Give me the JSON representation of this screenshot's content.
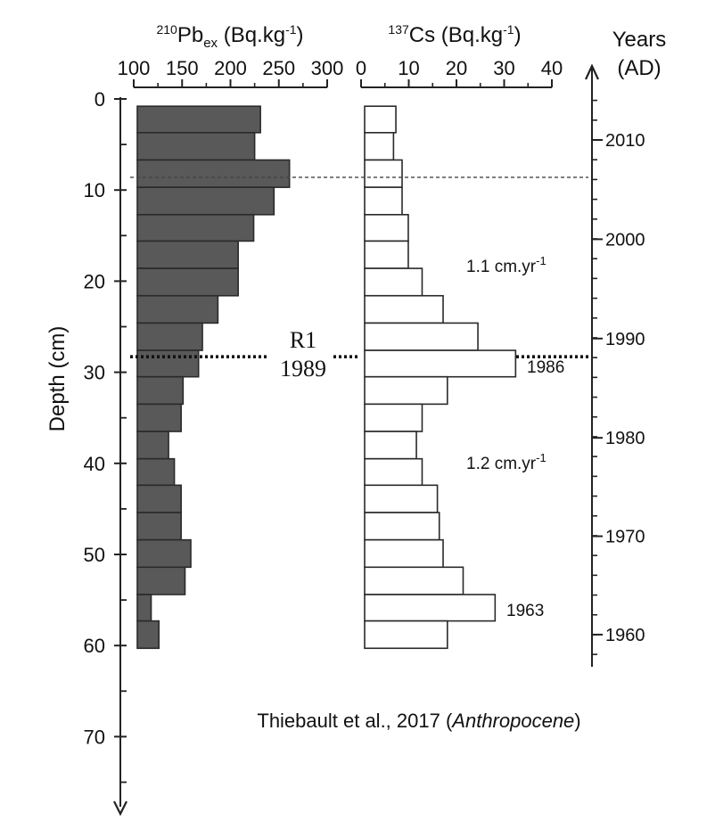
{
  "chart_data": {
    "type": "bar",
    "orientation": "horizontal",
    "shared_axis": {
      "label": "Depth (cm)",
      "ticks": [
        "0",
        "10",
        "20",
        "30",
        "40",
        "50",
        "60",
        "70"
      ],
      "range": [
        0,
        78
      ],
      "direction": "down"
    },
    "panels": [
      {
        "id": "pb",
        "title_sup": "210",
        "title_main": "Pb",
        "title_sub": "ex",
        "title_unit": " (Bq.kg",
        "title_unit_sup": "-1",
        "title_unit_end": ")",
        "xlim": [
          100,
          300
        ],
        "ticks": [
          "100",
          "150",
          "200",
          "250",
          "300"
        ],
        "tick_values": [
          100,
          150,
          200,
          250,
          300
        ],
        "fill": "#595959",
        "bars": [
          {
            "top": 0.8,
            "bottom": 3.7,
            "value": 231
          },
          {
            "top": 3.7,
            "bottom": 6.7,
            "value": 225
          },
          {
            "top": 6.7,
            "bottom": 9.7,
            "value": 261
          },
          {
            "top": 9.7,
            "bottom": 12.7,
            "value": 245
          },
          {
            "top": 12.7,
            "bottom": 15.6,
            "value": 224
          },
          {
            "top": 15.6,
            "bottom": 18.6,
            "value": 208
          },
          {
            "top": 18.6,
            "bottom": 21.6,
            "value": 208
          },
          {
            "top": 21.6,
            "bottom": 24.6,
            "value": 187
          },
          {
            "top": 24.6,
            "bottom": 27.6,
            "value": 171
          },
          {
            "top": 27.6,
            "bottom": 30.5,
            "value": 167
          },
          {
            "top": 30.5,
            "bottom": 33.5,
            "value": 151
          },
          {
            "top": 33.5,
            "bottom": 36.5,
            "value": 149
          },
          {
            "top": 36.5,
            "bottom": 39.5,
            "value": 136
          },
          {
            "top": 39.5,
            "bottom": 42.4,
            "value": 142
          },
          {
            "top": 42.4,
            "bottom": 45.4,
            "value": 149
          },
          {
            "top": 45.4,
            "bottom": 48.4,
            "value": 149
          },
          {
            "top": 48.4,
            "bottom": 51.4,
            "value": 159
          },
          {
            "top": 51.4,
            "bottom": 54.4,
            "value": 153
          },
          {
            "top": 54.4,
            "bottom": 57.3,
            "value": 118
          },
          {
            "top": 57.3,
            "bottom": 60.3,
            "value": 126
          }
        ]
      },
      {
        "id": "cs",
        "title_sup": "137",
        "title_main": "Cs",
        "title_sub": "",
        "title_unit": " (Bq.kg",
        "title_unit_sup": "-1",
        "title_unit_end": ")",
        "xlim": [
          0,
          40
        ],
        "ticks": [
          "0",
          "10",
          "20",
          "30",
          "40"
        ],
        "tick_values": [
          0,
          10,
          20,
          30,
          40
        ],
        "fill": "#ffffff",
        "bars": [
          {
            "top": 0.8,
            "bottom": 3.7,
            "value": 7.3
          },
          {
            "top": 3.7,
            "bottom": 6.7,
            "value": 6.8
          },
          {
            "top": 6.7,
            "bottom": 9.7,
            "value": 8.6
          },
          {
            "top": 9.7,
            "bottom": 12.7,
            "value": 8.6
          },
          {
            "top": 12.7,
            "bottom": 15.6,
            "value": 9.9
          },
          {
            "top": 15.6,
            "bottom": 18.6,
            "value": 9.9
          },
          {
            "top": 18.6,
            "bottom": 21.6,
            "value": 12.8
          },
          {
            "top": 21.6,
            "bottom": 24.6,
            "value": 17.2
          },
          {
            "top": 24.6,
            "bottom": 27.6,
            "value": 24.5
          },
          {
            "top": 27.6,
            "bottom": 30.5,
            "value": 32.4
          },
          {
            "top": 30.5,
            "bottom": 33.5,
            "value": 18.1
          },
          {
            "top": 33.5,
            "bottom": 36.5,
            "value": 12.8
          },
          {
            "top": 36.5,
            "bottom": 39.5,
            "value": 11.6
          },
          {
            "top": 39.5,
            "bottom": 42.4,
            "value": 12.8
          },
          {
            "top": 42.4,
            "bottom": 45.4,
            "value": 16.0
          },
          {
            "top": 45.4,
            "bottom": 48.4,
            "value": 16.4
          },
          {
            "top": 48.4,
            "bottom": 51.4,
            "value": 17.2
          },
          {
            "top": 51.4,
            "bottom": 54.4,
            "value": 21.4
          },
          {
            "top": 54.4,
            "bottom": 57.3,
            "value": 28.1
          },
          {
            "top": 57.3,
            "bottom": 60.3,
            "value": 18.1
          }
        ]
      }
    ],
    "years_axis": {
      "label_line1": "Years",
      "label_line2": "(AD)",
      "ticks": [
        "2010",
        "2000",
        "1990",
        "1980",
        "1970",
        "1960"
      ],
      "tick_depths": [
        4.5,
        15.4,
        26.3,
        37.2,
        48.0,
        58.8
      ],
      "minor_spacing_years": 2,
      "top_depth": -3.5,
      "bottom_depth": 62.5
    },
    "reference_lines": [
      {
        "depth": 8.6,
        "style": "dashed"
      },
      {
        "depth": 28.3,
        "style": "dotted"
      }
    ],
    "annotations": {
      "r1_label": "R1",
      "r1_year": "1989",
      "peak_1986": "1986",
      "peak_1963": "1963",
      "rate_upper": "1.1 cm.yr",
      "rate_upper_sup": "-1",
      "rate_lower": "1.2 cm.yr",
      "rate_lower_sup": "-1"
    }
  },
  "caption": {
    "text": "Thiebault et al., 2017 (",
    "italic": "Anthropocene",
    "end": ")"
  }
}
